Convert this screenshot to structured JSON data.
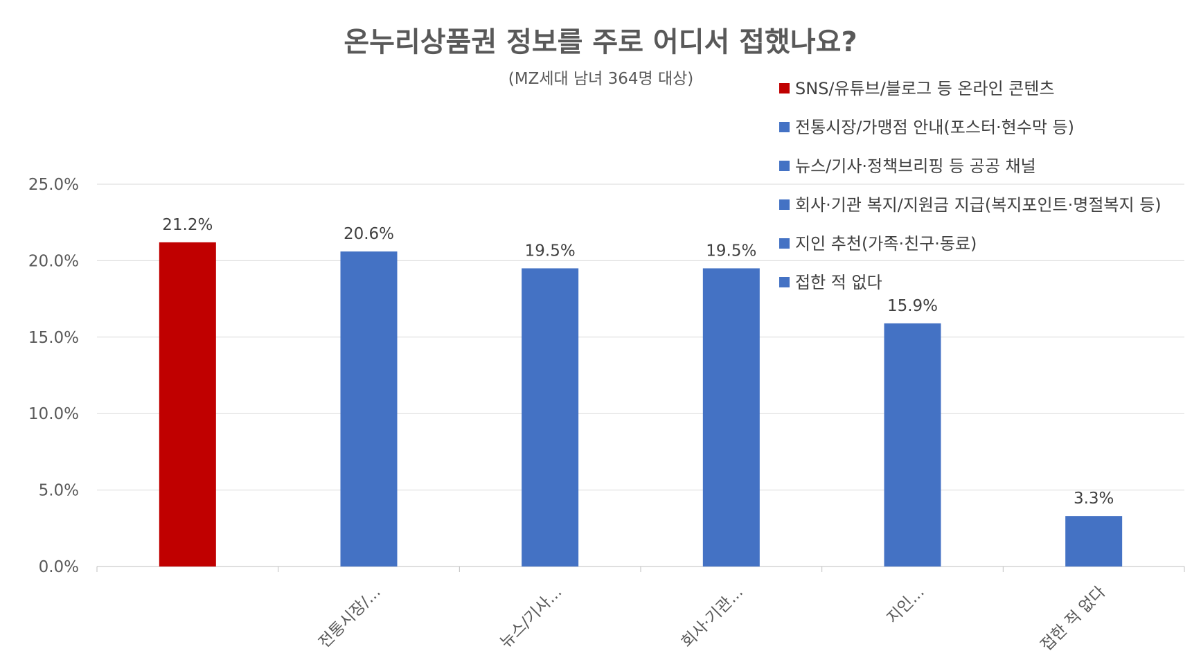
{
  "chart_data": {
    "type": "bar",
    "title": "온누리상품권 정보를 주로 어디서 접했나요?",
    "subtitle": "(MZ세대 남녀 364명 대상)",
    "categories": [
      "SNS/유튜브/블로그 등 온라인 콘텐츠",
      "전통시장/가맹점 안내(포스터·현수막 등)",
      "뉴스/기사·정책브리핑 등 공공 채널",
      "회사·기관 복지/지원금 지급(복지포인트·명절복지 등)",
      "지인 추천(가족·친구·동료)",
      "접한 적 없다"
    ],
    "x_tick_labels": [
      "",
      "전통시장/...",
      "뉴스/기사...",
      "회사·기관...",
      "지인...",
      "접한 적 없다"
    ],
    "values": [
      21.2,
      20.6,
      19.5,
      19.5,
      15.9,
      3.3
    ],
    "data_labels": [
      "21.2%",
      "20.6%",
      "19.5%",
      "19.5%",
      "15.9%",
      "3.3%"
    ],
    "colors": [
      "#C00000",
      "#4472C4",
      "#4472C4",
      "#4472C4",
      "#4472C4",
      "#4472C4"
    ],
    "y_ticks": [
      "0.0%",
      "5.0%",
      "10.0%",
      "15.0%",
      "20.0%",
      "25.0%"
    ],
    "ylim": [
      0,
      25
    ],
    "grid": true,
    "legend_position": "top-right"
  }
}
